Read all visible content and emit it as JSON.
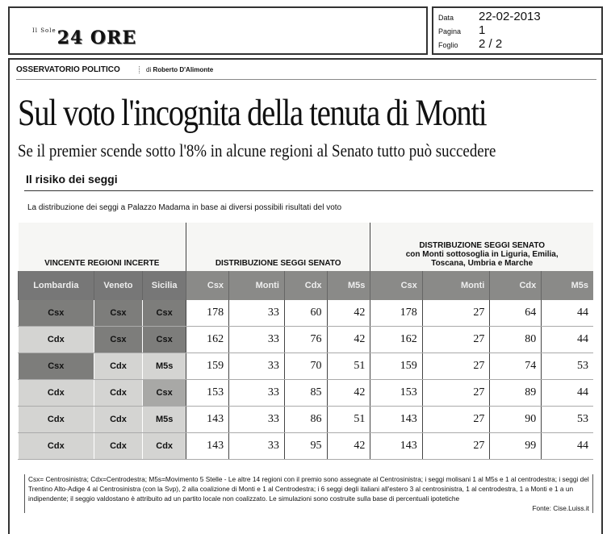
{
  "header": {
    "logo_small": "Il Sole",
    "logo_main": "24 ORE"
  },
  "meta": {
    "data_label": "Data",
    "data_value": "22-02-2013",
    "pagina_label": "Pagina",
    "pagina_value": "1",
    "foglio_label": "Foglio",
    "foglio_value": "2 / 2"
  },
  "article": {
    "rubric": "OSSERVATORIO POLITICO",
    "byline_prefix": "di",
    "author": "Roberto D'Alimonte",
    "title": "Sul voto l'incognita della tenuta di Monti",
    "subtitle": "Se il premier scende sotto l'8% in alcune regioni al Senato tutto può succedere",
    "section": "Il risiko dei seggi",
    "intro": "La distribuzione dei seggi a Palazzo Madama in base ai diversi possibili risultati del voto"
  },
  "table": {
    "group_headers": [
      "VINCENTE REGIONI INCERTE",
      "DISTRIBUZIONE SEGGI SENATO",
      "DISTRIBUZIONE SEGGI SENATO",
      "con Monti sottosoglia in Liguria, Emilia,",
      "Toscana, Umbria e Marche"
    ],
    "columns": [
      "Lombardia",
      "Veneto",
      "Sicilia",
      "Csx",
      "Monti",
      "Cdx",
      "M5s",
      "Csx",
      "Monti",
      "Cdx",
      "M5s"
    ],
    "rows": [
      [
        "Csx",
        "Csx",
        "Csx",
        "178",
        "33",
        "60",
        "42",
        "178",
        "27",
        "64",
        "44"
      ],
      [
        "Cdx",
        "Csx",
        "Csx",
        "162",
        "33",
        "76",
        "42",
        "162",
        "27",
        "80",
        "44"
      ],
      [
        "Csx",
        "Cdx",
        "M5s",
        "159",
        "33",
        "70",
        "51",
        "159",
        "27",
        "74",
        "53"
      ],
      [
        "Cdx",
        "Cdx",
        "Csx",
        "153",
        "33",
        "85",
        "42",
        "153",
        "27",
        "89",
        "44"
      ],
      [
        "Cdx",
        "Cdx",
        "M5s",
        "143",
        "33",
        "86",
        "51",
        "143",
        "27",
        "90",
        "53"
      ],
      [
        "Cdx",
        "Cdx",
        "Cdx",
        "143",
        "33",
        "95",
        "42",
        "143",
        "27",
        "99",
        "44"
      ]
    ]
  },
  "note": "Csx= Centrosinistra; Cdx=Centrodestra; M5s=Movimento 5 Stelle - Le altre 14 regioni con il premio sono assegnate al Centrosinistra; i seggi molisani 1 al M5s e 1 al centrodestra; i seggi del Trentino Alto-Adige 4 al Centrosinistra (con la Svp), 2 alla coalizione di Monti e 1 al Centrodestra; i 6 seggi degli italiani all'estero 3 al centrosinistra, 1 al centrodestra, 1 a Monti e 1 a un indipendente; il seggio valdostano è attribuito ad un partito locale non coalizzato. Le simulazioni sono costruite sulla base di percentuali ipotetiche",
  "source": "Fonte: Cise.Luiss.it"
}
